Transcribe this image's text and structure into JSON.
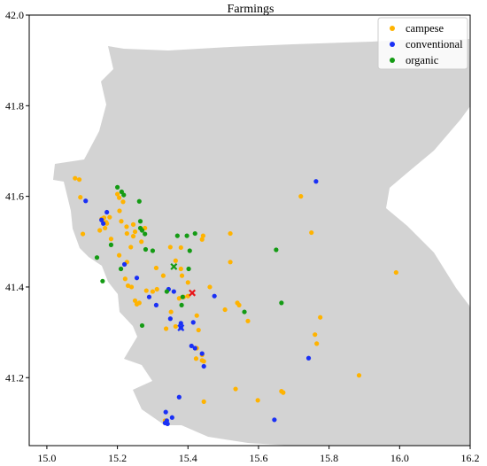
{
  "chart_data": {
    "type": "scatter",
    "title": "Farmings",
    "xlabel": "",
    "ylabel": "",
    "xlim": [
      14.95,
      16.2
    ],
    "ylim": [
      41.05,
      42.0
    ],
    "xticks": [
      "15.0",
      "15.2",
      "15.4",
      "15.6",
      "15.8",
      "16.0",
      "16.2"
    ],
    "yticks": [
      "41.2",
      "41.4",
      "41.6",
      "41.8",
      "42.0"
    ],
    "grid": false,
    "legend_position": "top-right",
    "background_region_color": "#d3d3d3",
    "series": [
      {
        "name": "campese",
        "color": "#ffb300",
        "marker": "circle",
        "points": [
          [
            15.08,
            41.64
          ],
          [
            15.092,
            41.637
          ],
          [
            15.095,
            41.598
          ],
          [
            15.102,
            41.517
          ],
          [
            15.155,
            41.55
          ],
          [
            15.158,
            41.546
          ],
          [
            15.162,
            41.553
          ],
          [
            15.168,
            41.543
          ],
          [
            15.178,
            41.554
          ],
          [
            15.17,
            41.54
          ],
          [
            15.15,
            41.525
          ],
          [
            15.165,
            41.53
          ],
          [
            15.182,
            41.506
          ],
          [
            15.2,
            41.605
          ],
          [
            15.205,
            41.597
          ],
          [
            15.216,
            41.588
          ],
          [
            15.206,
            41.568
          ],
          [
            15.211,
            41.545
          ],
          [
            15.226,
            41.533
          ],
          [
            15.227,
            41.518
          ],
          [
            15.245,
            41.538
          ],
          [
            15.25,
            41.522
          ],
          [
            15.268,
            41.5
          ],
          [
            15.278,
            41.53
          ],
          [
            15.245,
            41.512
          ],
          [
            15.238,
            41.488
          ],
          [
            15.227,
            41.455
          ],
          [
            15.205,
            41.47
          ],
          [
            15.222,
            41.418
          ],
          [
            15.23,
            41.403
          ],
          [
            15.24,
            41.4
          ],
          [
            15.25,
            41.37
          ],
          [
            15.255,
            41.362
          ],
          [
            15.262,
            41.365
          ],
          [
            15.282,
            41.392
          ],
          [
            15.3,
            41.39
          ],
          [
            15.312,
            41.395
          ],
          [
            15.33,
            41.425
          ],
          [
            15.31,
            41.442
          ],
          [
            15.35,
            41.488
          ],
          [
            15.365,
            41.458
          ],
          [
            15.38,
            41.487
          ],
          [
            15.38,
            41.44
          ],
          [
            15.383,
            41.425
          ],
          [
            15.4,
            41.41
          ],
          [
            15.44,
            41.505
          ],
          [
            15.443,
            41.513
          ],
          [
            15.52,
            41.518
          ],
          [
            15.462,
            41.4
          ],
          [
            15.388,
            41.378
          ],
          [
            15.375,
            41.375
          ],
          [
            15.352,
            41.345
          ],
          [
            15.365,
            41.313
          ],
          [
            15.338,
            41.308
          ],
          [
            15.425,
            41.337
          ],
          [
            15.425,
            41.265
          ],
          [
            15.423,
            41.242
          ],
          [
            15.44,
            41.25
          ],
          [
            15.44,
            41.238
          ],
          [
            15.445,
            41.236
          ],
          [
            15.43,
            41.305
          ],
          [
            15.505,
            41.35
          ],
          [
            15.54,
            41.365
          ],
          [
            15.545,
            41.36
          ],
          [
            15.57,
            41.325
          ],
          [
            15.535,
            41.175
          ],
          [
            15.598,
            41.15
          ],
          [
            15.665,
            41.17
          ],
          [
            15.72,
            41.6
          ],
          [
            15.75,
            41.52
          ],
          [
            15.76,
            41.295
          ],
          [
            15.765,
            41.275
          ],
          [
            15.775,
            41.333
          ],
          [
            15.885,
            41.205
          ],
          [
            15.99,
            41.432
          ],
          [
            15.67,
            41.167
          ],
          [
            15.445,
            41.147
          ],
          [
            15.335,
            41.105
          ],
          [
            15.52,
            41.455
          ],
          [
            15.4,
            41.38
          ]
        ]
      },
      {
        "name": "conventional",
        "color": "#1a30f5",
        "marker": "circle",
        "points": [
          [
            15.11,
            41.59
          ],
          [
            15.17,
            41.565
          ],
          [
            15.155,
            41.548
          ],
          [
            15.16,
            41.54
          ],
          [
            15.22,
            41.45
          ],
          [
            15.255,
            41.42
          ],
          [
            15.29,
            41.378
          ],
          [
            15.31,
            41.36
          ],
          [
            15.345,
            41.395
          ],
          [
            15.36,
            41.39
          ],
          [
            15.35,
            41.33
          ],
          [
            15.38,
            41.32
          ],
          [
            15.415,
            41.322
          ],
          [
            15.475,
            41.38
          ],
          [
            15.42,
            41.265
          ],
          [
            15.41,
            41.27
          ],
          [
            15.44,
            41.253
          ],
          [
            15.445,
            41.225
          ],
          [
            15.375,
            41.157
          ],
          [
            15.355,
            41.112
          ],
          [
            15.337,
            41.124
          ],
          [
            15.335,
            41.1
          ],
          [
            15.34,
            41.105
          ],
          [
            15.342,
            41.098
          ],
          [
            15.645,
            41.107
          ],
          [
            15.742,
            41.243
          ],
          [
            15.763,
            41.633
          ],
          [
            15.38,
            41.31
          ]
        ]
      },
      {
        "name": "organic",
        "color": "#149b14",
        "marker": "circle",
        "points": [
          [
            15.2,
            41.62
          ],
          [
            15.212,
            41.61
          ],
          [
            15.218,
            41.603
          ],
          [
            15.262,
            41.589
          ],
          [
            15.265,
            41.53
          ],
          [
            15.27,
            41.525
          ],
          [
            15.278,
            41.517
          ],
          [
            15.265,
            41.545
          ],
          [
            15.28,
            41.483
          ],
          [
            15.3,
            41.48
          ],
          [
            15.37,
            41.513
          ],
          [
            15.397,
            41.513
          ],
          [
            15.405,
            41.48
          ],
          [
            15.42,
            41.518
          ],
          [
            15.402,
            41.44
          ],
          [
            15.382,
            41.36
          ],
          [
            15.34,
            41.39
          ],
          [
            15.27,
            41.315
          ],
          [
            15.182,
            41.493
          ],
          [
            15.158,
            41.413
          ],
          [
            15.142,
            41.465
          ],
          [
            15.21,
            41.44
          ],
          [
            15.65,
            41.482
          ],
          [
            15.665,
            41.365
          ],
          [
            15.56,
            41.345
          ],
          [
            15.385,
            41.378
          ]
        ]
      }
    ],
    "special_markers": [
      {
        "name": "organic",
        "color": "#149b14",
        "marker": "x",
        "x": 15.36,
        "y": 41.445
      },
      {
        "name": "campese",
        "color": "#e8151a",
        "marker": "x",
        "x": 15.412,
        "y": 41.387
      },
      {
        "name": "conventional",
        "color": "#1a30f5",
        "marker": "x",
        "x": 15.38,
        "y": 41.31
      }
    ]
  }
}
